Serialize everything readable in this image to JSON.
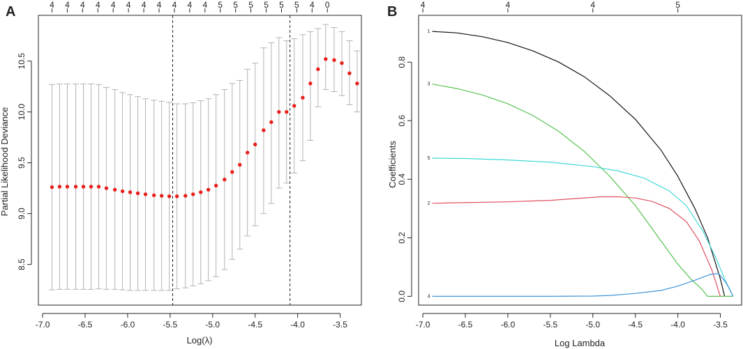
{
  "chart_data": [
    {
      "panel": "A",
      "type": "scatter",
      "title": "",
      "xlabel": "Log(λ)",
      "ylabel": "Partial Likelihood Deviance",
      "xlim": [
        -7.05,
        -3.25
      ],
      "ylim": [
        8.1,
        10.95
      ],
      "xticks": [
        -7.0,
        -6.5,
        -6.0,
        -5.5,
        -5.0,
        -4.5,
        -4.0,
        -3.5
      ],
      "xtick_labels": [
        "-7.0",
        "-6.5",
        "-6.0",
        "-5.5",
        "-5.0",
        "-4.5",
        "-4.0",
        "-3.5"
      ],
      "yticks": [
        8.5,
        9.0,
        9.5,
        10.0,
        10.5
      ],
      "ytick_labels": [
        "8.5",
        "9.0",
        "9.5",
        "10.0",
        "10.5"
      ],
      "top_labels": [
        "4",
        "4",
        "4",
        "4",
        "4",
        "4",
        "4",
        "4",
        "4",
        "4",
        "4",
        "5",
        "5",
        "5",
        "5",
        "5",
        "5",
        "4",
        "0"
      ],
      "vlines": [
        -5.47,
        -4.09
      ],
      "points": [
        {
          "x": -6.89,
          "y": 9.26,
          "lo": 8.25,
          "hi": 10.27
        },
        {
          "x": -6.8,
          "y": 9.265,
          "lo": 8.255,
          "hi": 10.275
        },
        {
          "x": -6.71,
          "y": 9.265,
          "lo": 8.255,
          "hi": 10.275
        },
        {
          "x": -6.61,
          "y": 9.265,
          "lo": 8.255,
          "hi": 10.275
        },
        {
          "x": -6.52,
          "y": 9.265,
          "lo": 8.255,
          "hi": 10.275
        },
        {
          "x": -6.43,
          "y": 9.265,
          "lo": 8.255,
          "hi": 10.275
        },
        {
          "x": -6.34,
          "y": 9.265,
          "lo": 8.26,
          "hi": 10.27
        },
        {
          "x": -6.25,
          "y": 9.25,
          "lo": 8.255,
          "hi": 10.24
        },
        {
          "x": -6.15,
          "y": 9.235,
          "lo": 8.255,
          "hi": 10.22
        },
        {
          "x": -6.06,
          "y": 9.22,
          "lo": 8.25,
          "hi": 10.19
        },
        {
          "x": -5.97,
          "y": 9.21,
          "lo": 8.245,
          "hi": 10.17
        },
        {
          "x": -5.88,
          "y": 9.2,
          "lo": 8.245,
          "hi": 10.15
        },
        {
          "x": -5.79,
          "y": 9.19,
          "lo": 8.245,
          "hi": 10.13
        },
        {
          "x": -5.69,
          "y": 9.18,
          "lo": 8.245,
          "hi": 10.115
        },
        {
          "x": -5.6,
          "y": 9.175,
          "lo": 8.245,
          "hi": 10.105
        },
        {
          "x": -5.51,
          "y": 9.17,
          "lo": 8.245,
          "hi": 10.095
        },
        {
          "x": -5.42,
          "y": 9.17,
          "lo": 8.26,
          "hi": 10.08
        },
        {
          "x": -5.32,
          "y": 9.175,
          "lo": 8.27,
          "hi": 10.08
        },
        {
          "x": -5.23,
          "y": 9.19,
          "lo": 8.29,
          "hi": 10.09
        },
        {
          "x": -5.14,
          "y": 9.21,
          "lo": 8.31,
          "hi": 10.11
        },
        {
          "x": -5.05,
          "y": 9.235,
          "lo": 8.34,
          "hi": 10.13
        },
        {
          "x": -4.96,
          "y": 9.275,
          "lo": 8.38,
          "hi": 10.17
        },
        {
          "x": -4.86,
          "y": 9.335,
          "lo": 8.45,
          "hi": 10.22
        },
        {
          "x": -4.77,
          "y": 9.41,
          "lo": 8.55,
          "hi": 10.28
        },
        {
          "x": -4.68,
          "y": 9.48,
          "lo": 8.65,
          "hi": 10.31
        },
        {
          "x": -4.59,
          "y": 9.6,
          "lo": 8.78,
          "hi": 10.42
        },
        {
          "x": -4.5,
          "y": 9.68,
          "lo": 8.88,
          "hi": 10.48
        },
        {
          "x": -4.4,
          "y": 9.82,
          "lo": 9.0,
          "hi": 10.63
        },
        {
          "x": -4.31,
          "y": 9.9,
          "lo": 9.1,
          "hi": 10.68
        },
        {
          "x": -4.22,
          "y": 10.0,
          "lo": 9.25,
          "hi": 10.73
        },
        {
          "x": -4.13,
          "y": 10.0,
          "lo": 9.3,
          "hi": 10.7
        },
        {
          "x": -4.04,
          "y": 10.06,
          "lo": 9.4,
          "hi": 10.72
        },
        {
          "x": -3.94,
          "y": 10.14,
          "lo": 9.52,
          "hi": 10.76
        },
        {
          "x": -3.85,
          "y": 10.28,
          "lo": 9.72,
          "hi": 10.79
        },
        {
          "x": -3.76,
          "y": 10.42,
          "lo": 10.05,
          "hi": 10.82
        },
        {
          "x": -3.67,
          "y": 10.52,
          "lo": 10.22,
          "hi": 10.86
        },
        {
          "x": -3.57,
          "y": 10.51,
          "lo": 10.2,
          "hi": 10.83
        },
        {
          "x": -3.48,
          "y": 10.48,
          "lo": 10.16,
          "hi": 10.79
        },
        {
          "x": -3.39,
          "y": 10.38,
          "lo": 10.07,
          "hi": 10.7
        },
        {
          "x": -3.3,
          "y": 10.28,
          "lo": 10.0,
          "hi": 10.6
        }
      ],
      "point_color": "#e8201c",
      "errorbar_color": "#b3b3b3"
    },
    {
      "panel": "B",
      "type": "line",
      "title": "",
      "xlabel": "Log Lambda",
      "ylabel": "Coefficients",
      "xlim": [
        -7.05,
        -3.25
      ],
      "ylim": [
        -0.03,
        0.96
      ],
      "xticks": [
        -7.0,
        -6.5,
        -6.0,
        -5.5,
        -5.0,
        -4.5,
        -4.0,
        -3.5
      ],
      "xtick_labels": [
        "-7.0",
        "-6.5",
        "-6.0",
        "-5.5",
        "-5.0",
        "-4.5",
        "-4.0",
        "-3.5"
      ],
      "yticks": [
        0.0,
        0.2,
        0.4,
        0.6,
        0.8
      ],
      "ytick_labels": [
        "0.0",
        "0.2",
        "0.4",
        "0.6",
        "0.8"
      ],
      "top_ticks": [
        -7.0,
        -6.0,
        -5.0,
        -4.0
      ],
      "top_labels": [
        "4",
        "4",
        "4",
        "5"
      ],
      "series": [
        {
          "name": "1",
          "color": "#111111",
          "x": [
            -6.89,
            -6.6,
            -6.3,
            -6.0,
            -5.7,
            -5.4,
            -5.1,
            -4.8,
            -4.5,
            -4.2,
            -4.0,
            -3.8,
            -3.65,
            -3.5,
            -3.45
          ],
          "y": [
            0.905,
            0.9,
            0.887,
            0.867,
            0.838,
            0.8,
            0.75,
            0.685,
            0.605,
            0.5,
            0.41,
            0.3,
            0.2,
            0.06,
            0.0
          ]
        },
        {
          "name": "3",
          "color": "#55c24e",
          "x": [
            -6.89,
            -6.6,
            -6.3,
            -6.0,
            -5.7,
            -5.4,
            -5.1,
            -4.8,
            -4.5,
            -4.2,
            -4.0,
            -3.85,
            -3.72,
            -3.65,
            -3.5,
            -3.35
          ],
          "y": [
            0.725,
            0.71,
            0.688,
            0.658,
            0.617,
            0.563,
            0.495,
            0.41,
            0.31,
            0.19,
            0.11,
            0.06,
            0.025,
            0.0,
            0.0,
            0.0
          ]
        },
        {
          "name": "5",
          "color": "#3fd8d8",
          "x": [
            -6.89,
            -6.5,
            -6.0,
            -5.5,
            -5.0,
            -4.7,
            -4.4,
            -4.1,
            -3.9,
            -3.7,
            -3.55,
            -3.45,
            -3.35
          ],
          "y": [
            0.472,
            0.471,
            0.466,
            0.458,
            0.443,
            0.428,
            0.404,
            0.36,
            0.31,
            0.22,
            0.13,
            0.06,
            0.0
          ]
        },
        {
          "name": "2",
          "color": "#e0505f",
          "x": [
            -6.89,
            -6.5,
            -6.0,
            -5.5,
            -5.2,
            -4.9,
            -4.7,
            -4.5,
            -4.3,
            -4.1,
            -3.9,
            -3.75,
            -3.6,
            -3.5
          ],
          "y": [
            0.318,
            0.32,
            0.323,
            0.328,
            0.334,
            0.34,
            0.34,
            0.336,
            0.324,
            0.3,
            0.255,
            0.19,
            0.09,
            0.0
          ]
        },
        {
          "name": "4",
          "color": "#3b93d8",
          "x": [
            -6.89,
            -6.0,
            -5.5,
            -5.0,
            -4.8,
            -4.5,
            -4.2,
            -4.0,
            -3.8,
            -3.62,
            -3.52,
            -3.43,
            -3.35
          ],
          "y": [
            0.0,
            0.0,
            0.0,
            0.001,
            0.003,
            0.01,
            0.02,
            0.035,
            0.055,
            0.075,
            0.078,
            0.045,
            0.0
          ]
        }
      ]
    }
  ]
}
